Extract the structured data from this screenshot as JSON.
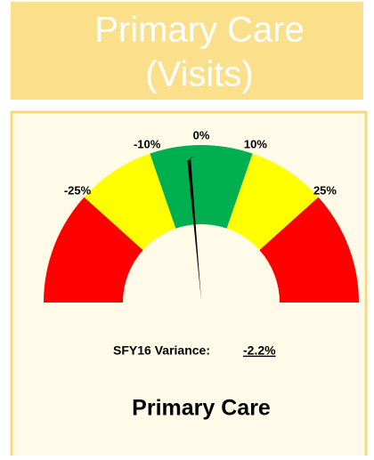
{
  "header": {
    "lines": [
      "Primary Care",
      "(Visits)"
    ]
  },
  "chart_data": {
    "type": "gauge",
    "ticks": [
      {
        "value": -25,
        "label": "-25%"
      },
      {
        "value": -10,
        "label": "-10%"
      },
      {
        "value": 0,
        "label": "0%"
      },
      {
        "value": 10,
        "label": "10%"
      },
      {
        "value": 25,
        "label": "25%"
      }
    ],
    "segment_colors": [
      "#ff0000",
      "#ffff00",
      "#00b050",
      "#ffff00",
      "#ff0000"
    ],
    "value": -2.2,
    "value_label": "-2.2%",
    "value_caption": "SFY16 Variance:",
    "title": "Primary Care"
  }
}
